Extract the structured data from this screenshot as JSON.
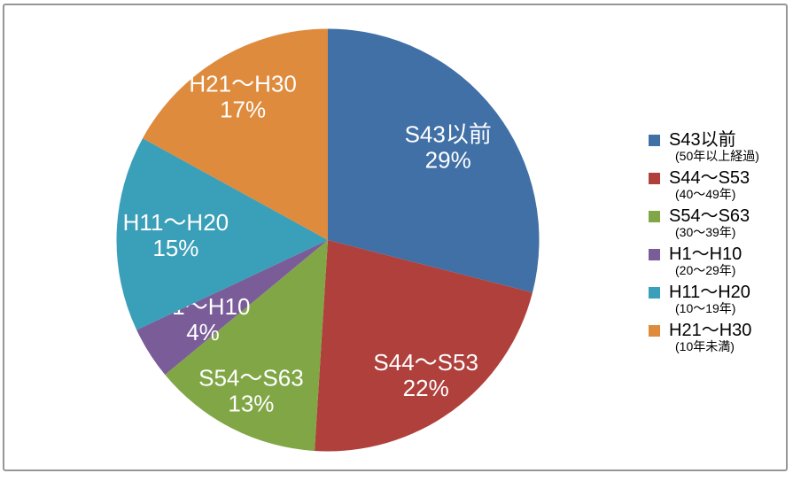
{
  "chart_data": {
    "type": "pie",
    "title": "",
    "direction": "clockwise",
    "start_angle_deg": 0,
    "unit": "%",
    "legend_position": "right",
    "data_label_color": "#FFFFFF",
    "frame_border_color": "#969696",
    "categories": [
      "S43以前",
      "S44〜S53",
      "S54〜S63",
      "H1〜H10",
      "H11〜H20",
      "H21〜H30"
    ],
    "values": [
      29,
      22,
      13,
      4,
      15,
      17
    ],
    "slices": [
      {
        "label": "S43以前",
        "value": 29,
        "pct_label": "29%",
        "legend_sub": "(50年以上経過)",
        "color": "#4070A6"
      },
      {
        "label": "S44〜S53",
        "value": 22,
        "pct_label": "22%",
        "legend_sub": "(40〜49年)",
        "color": "#AF403C"
      },
      {
        "label": "S54〜S63",
        "value": 13,
        "pct_label": "13%",
        "legend_sub": "(30〜39年)",
        "color": "#81A646"
      },
      {
        "label": "H1〜H10",
        "value": 4,
        "pct_label": "4%",
        "legend_sub": "(20〜29年)",
        "color": "#7A5C99"
      },
      {
        "label": "H11〜H20",
        "value": 15,
        "pct_label": "15%",
        "legend_sub": "(10〜19年)",
        "color": "#3A9FB8"
      },
      {
        "label": "H21〜H30",
        "value": 17,
        "pct_label": "17%",
        "legend_sub": "(10年未満)",
        "color": "#DE8B3D"
      }
    ]
  }
}
